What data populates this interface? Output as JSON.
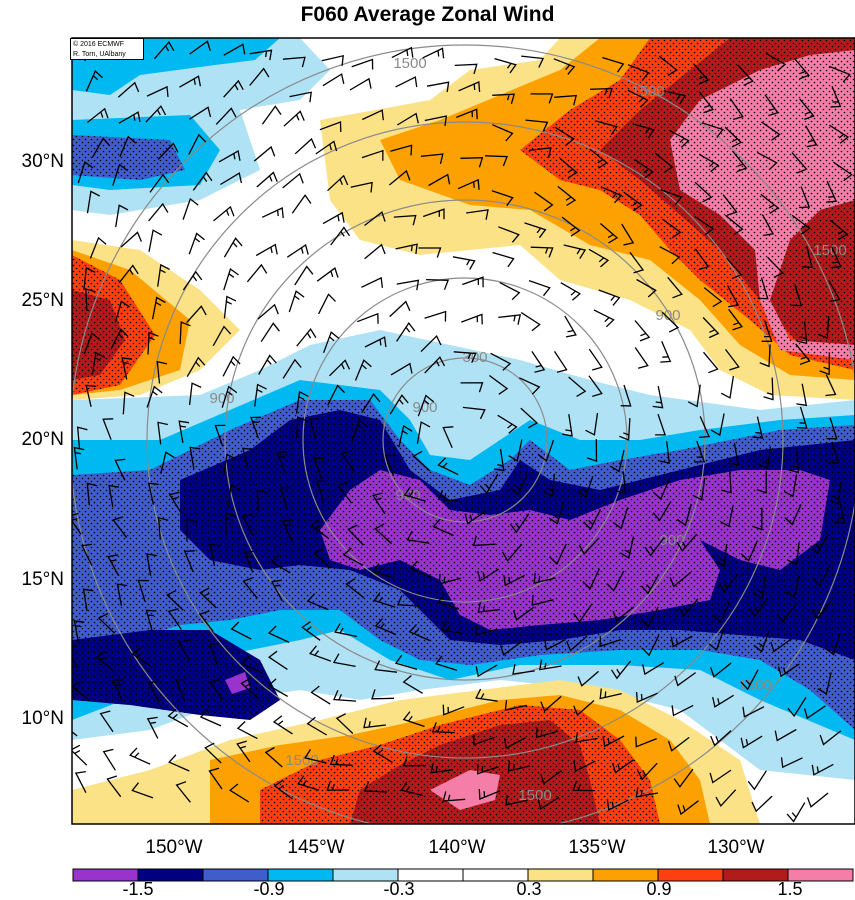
{
  "title": "F060 Average Zonal Wind",
  "credit": {
    "line1": "© 2016 ECMWF",
    "line2": "R. Torn, UAlbany"
  },
  "map": {
    "lat_labels": [
      "30°N",
      "25°N",
      "20°N",
      "15°N",
      "10°N"
    ],
    "lon_labels": [
      "150°W",
      "145°W",
      "140°W",
      "135°W",
      "130°W"
    ],
    "range_ring_labels": [
      "300",
      "900",
      "900",
      "900",
      "900",
      "900",
      "1500",
      "1500",
      "1500",
      "1500",
      "1500",
      "1500"
    ]
  },
  "colorbar": {
    "tick_labels": [
      "-1.5",
      "-0.9",
      "-0.3",
      "0.3",
      "0.9",
      "1.5"
    ],
    "colors": [
      "#9933cc",
      "#000080",
      "#3f5ecb",
      "#00b9f0",
      "#b0e2f5",
      "#ffffff",
      "#ffffff",
      "#fbe287",
      "#fda102",
      "#fe3f10",
      "#b11b1a",
      "#f57ea9"
    ]
  },
  "colors": {
    "purple": "#9933cc",
    "navy": "#000080",
    "blue": "#3f5ecb",
    "cyan": "#00b9f0",
    "lightblue": "#b0e2f5",
    "white": "#ffffff",
    "lightyellow": "#fbe287",
    "orange": "#fda102",
    "redorange": "#fe3f10",
    "darkred": "#b11b1a",
    "pink": "#f57ea9"
  }
}
